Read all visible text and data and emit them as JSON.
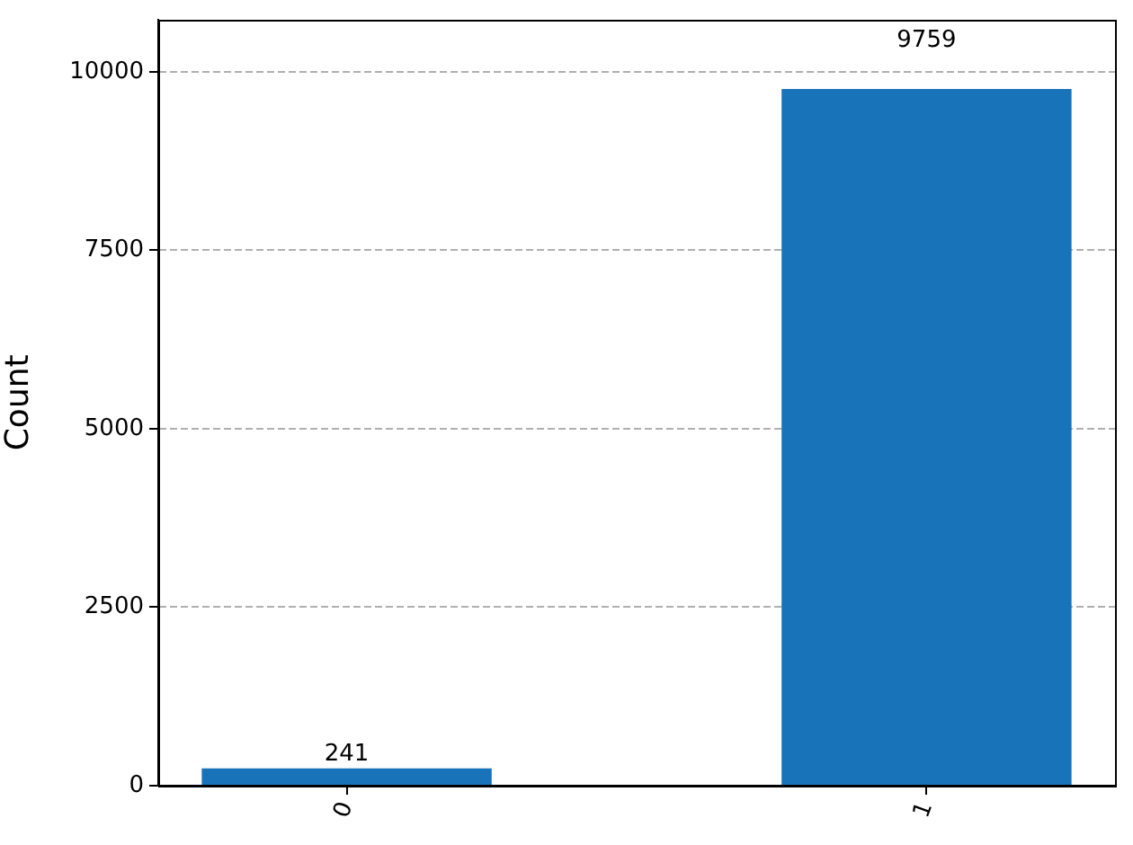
{
  "chart_data": {
    "type": "bar",
    "ylabel": "Count",
    "categories": [
      "0",
      "1"
    ],
    "values": [
      241,
      9759
    ],
    "color": "#1873b9",
    "ylim": [
      0,
      10735
    ],
    "yticks": [
      0,
      2500,
      5000,
      7500,
      10000
    ],
    "grid": "y",
    "data_labels": true
  }
}
